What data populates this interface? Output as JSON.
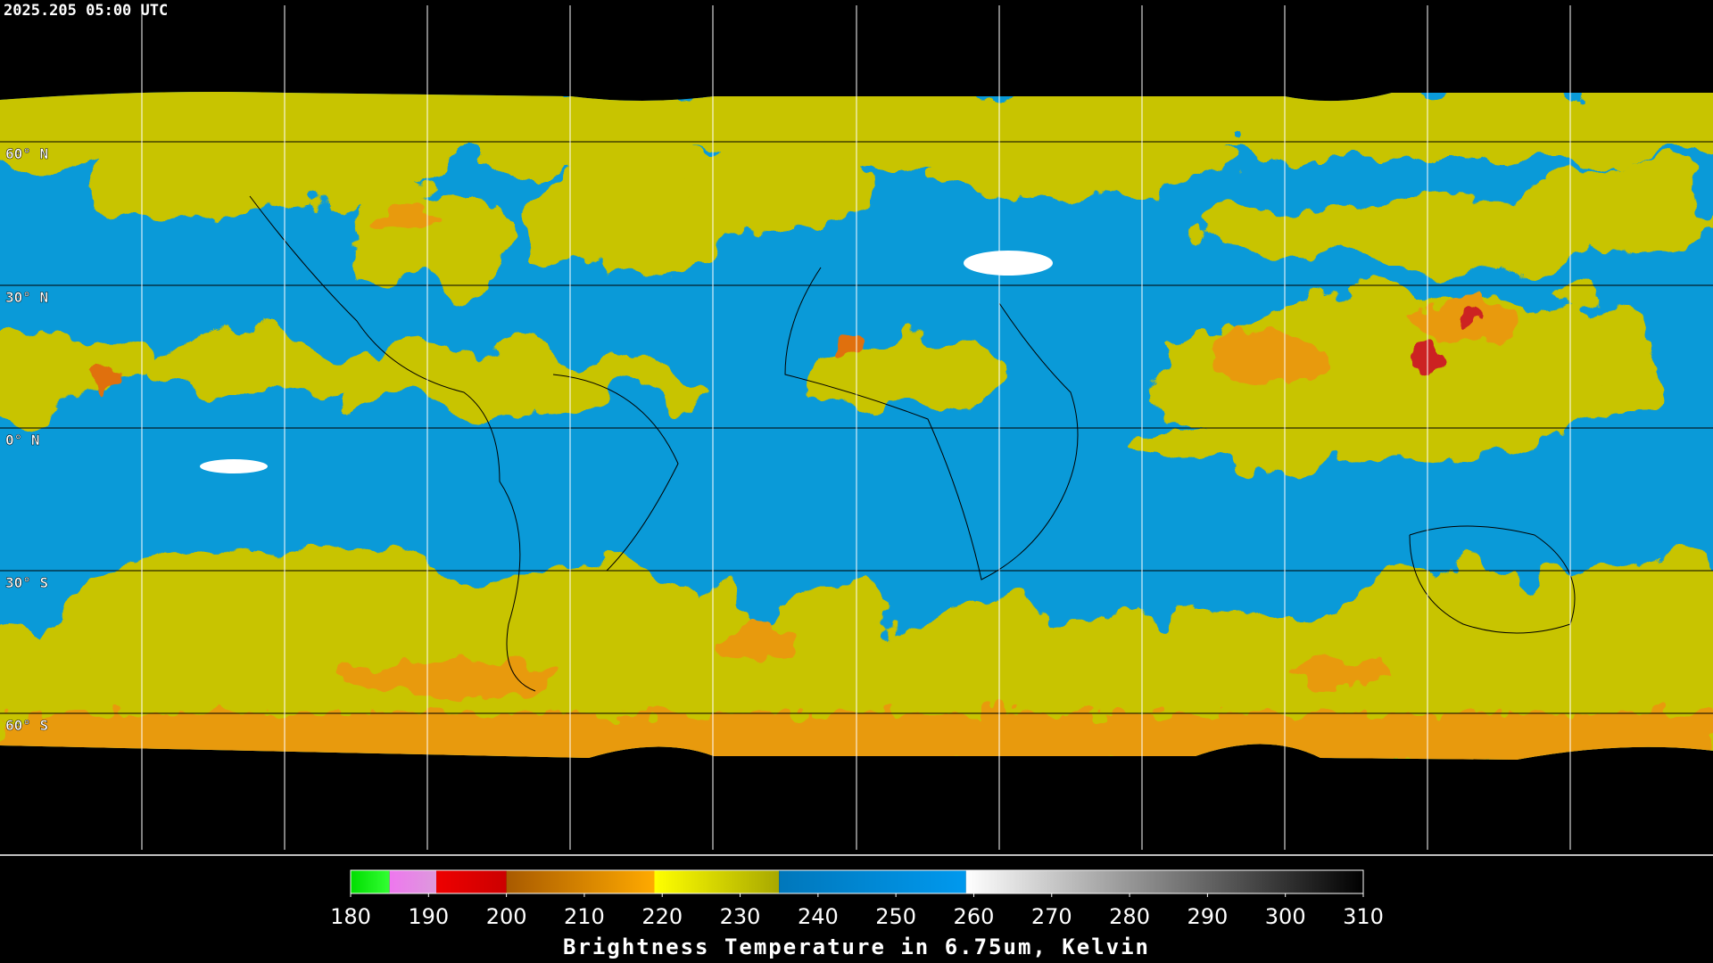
{
  "header": {
    "timestamp": "2025.205 05:00 UTC"
  },
  "map": {
    "lat_labels": [
      "60° N",
      "30° N",
      "0° N",
      "30° S",
      "60° S"
    ]
  },
  "colorbar": {
    "title": "Brightness Temperature in 6.75um, Kelvin",
    "lim": [
      180,
      310
    ],
    "ticks": [
      180,
      190,
      200,
      210,
      220,
      230,
      240,
      250,
      260,
      270,
      280,
      290,
      300,
      310
    ],
    "segments": [
      {
        "from": 180,
        "to": 185,
        "colors": [
          "#00dd00",
          "#33ff33"
        ]
      },
      {
        "from": 185,
        "to": 191,
        "colors": [
          "#ee77ee",
          "#dd99dd"
        ]
      },
      {
        "from": 191,
        "to": 200,
        "colors": [
          "#ee0000",
          "#cc0000"
        ]
      },
      {
        "from": 200,
        "to": 219,
        "colors": [
          "#a85a00",
          "#ffaa00"
        ]
      },
      {
        "from": 219,
        "to": 235,
        "colors": [
          "#ffff00",
          "#a8a800"
        ]
      },
      {
        "from": 235,
        "to": 259,
        "colors": [
          "#0077bb",
          "#0099ee"
        ]
      },
      {
        "from": 259,
        "to": 310,
        "colors": [
          "#ffffff",
          "#000000"
        ]
      }
    ]
  }
}
